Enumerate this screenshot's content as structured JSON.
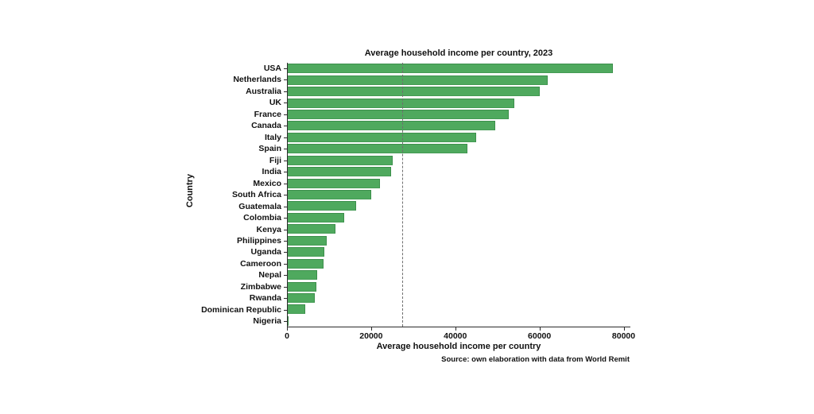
{
  "chart_data": {
    "type": "bar",
    "orientation": "horizontal",
    "title": "Average household income per country, 2023",
    "xlabel": "Average household income per country",
    "ylabel": "Country",
    "source": "Source: own elaboration with data from World Remit",
    "categories": [
      "USA",
      "Netherlands",
      "Australia",
      "UK",
      "France",
      "Canada",
      "Italy",
      "Spain",
      "Fiji",
      "India",
      "Mexico",
      "South Africa",
      "Guatemala",
      "Colombia",
      "Kenya",
      "Philippines",
      "Uganda",
      "Cameroon",
      "Nepal",
      "Zimbabwe",
      "Rwanda",
      "Dominican Republic",
      "Nigeria"
    ],
    "values": [
      77500,
      62000,
      60000,
      54000,
      52600,
      49400,
      44800,
      42800,
      24900,
      24700,
      21900,
      19800,
      16200,
      13400,
      11400,
      9200,
      8800,
      8600,
      7000,
      6900,
      6500,
      4200,
      200
    ],
    "xticks": [
      0,
      20000,
      40000,
      60000,
      80000
    ],
    "xlim": [
      0,
      81600
    ],
    "reference_line": {
      "value": 27250,
      "style": "dashed"
    },
    "grid": false,
    "legend": false
  },
  "colors": {
    "bar_fill": "#4fa95e",
    "bar_edge": "#3d8f4c",
    "reference_line": "#6e6e6e",
    "axis": "#2b2b2b",
    "text": "#111111",
    "background": "#ffffff"
  }
}
